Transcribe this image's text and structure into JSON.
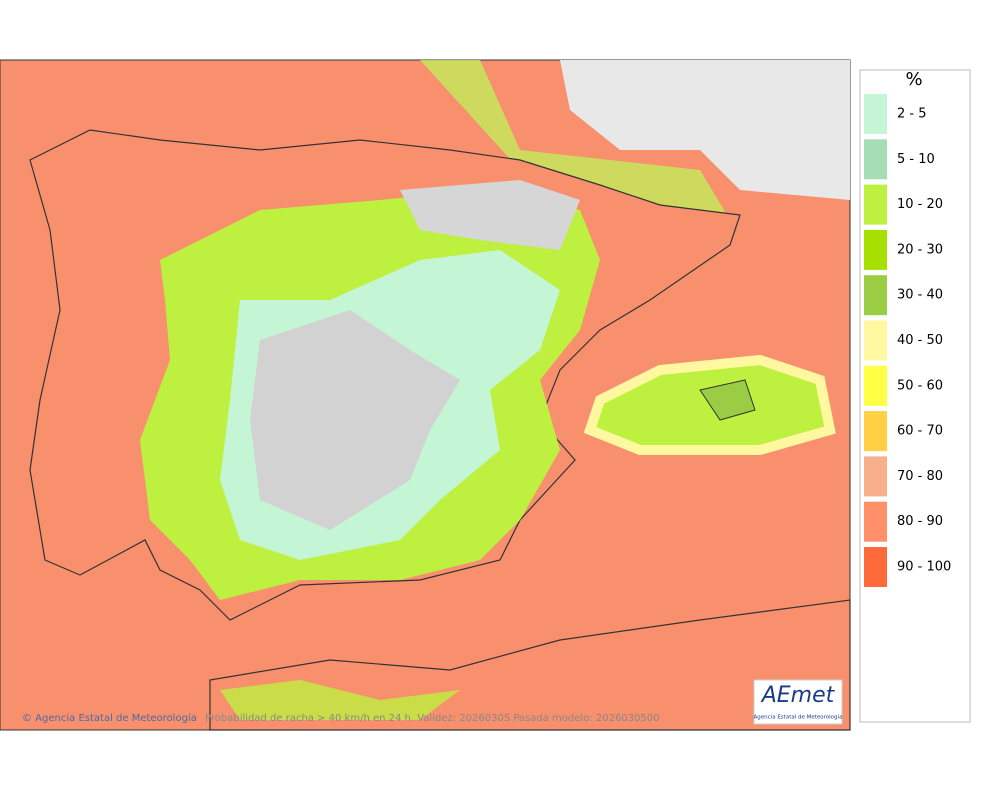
{
  "legend": {
    "title": "%",
    "items": [
      {
        "label": "2 - 5",
        "color": "#c4f5d4"
      },
      {
        "label": "5 - 10",
        "color": "#a6dcb6"
      },
      {
        "label": "10 - 20",
        "color": "#bef040"
      },
      {
        "label": "20 - 30",
        "color": "#a6e000"
      },
      {
        "label": "30 - 40",
        "color": "#9acc44"
      },
      {
        "label": "40 - 50",
        "color": "#fff8a0"
      },
      {
        "label": "50 - 60",
        "color": "#ffff44"
      },
      {
        "label": "60 - 70",
        "color": "#ffd044"
      },
      {
        "label": "70 - 80",
        "color": "#f8b08c"
      },
      {
        "label": "80 - 90",
        "color": "#ff906a"
      },
      {
        "label": "90 - 100",
        "color": "#ff6a3a"
      }
    ]
  },
  "footer": {
    "credit": "© Agencia Estatal de Meteorología",
    "caption": "Probabilidad de racha > 40 km/h en 24 h. Validez: 20260305 Pasada modelo: 2026030500"
  },
  "logo": {
    "name": "AEmet",
    "subtitle": "Agencia Estatal de Meteorología"
  }
}
